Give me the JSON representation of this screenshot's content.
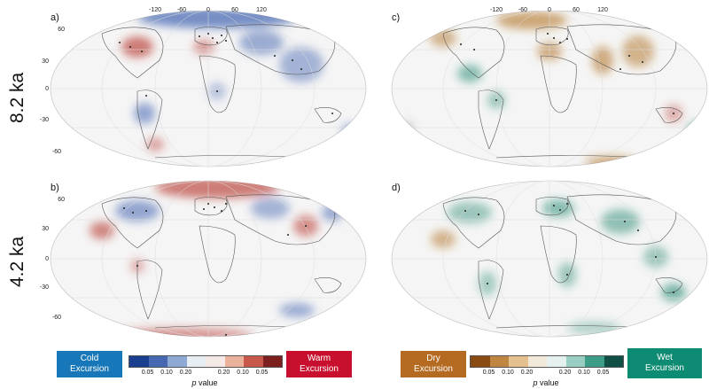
{
  "rows": [
    {
      "label": "8.2 ka"
    },
    {
      "label": "4.2 ka"
    }
  ],
  "panels": [
    {
      "letter": "a)",
      "variable": "temperature"
    },
    {
      "letter": "c)",
      "variable": "hydroclimate"
    },
    {
      "letter": "b)",
      "variable": "temperature"
    },
    {
      "letter": "d)",
      "variable": "hydroclimate"
    }
  ],
  "longitude_ticks": [
    "-120",
    "-60",
    "0",
    "60",
    "120"
  ],
  "latitude_ticks": [
    "60",
    "30",
    "0",
    "-30",
    "-60"
  ],
  "legend_temperature": {
    "left_box": "Cold\nExcursion",
    "right_box": "Warm\nExcursion",
    "left_color": "#1877b8",
    "right_color": "#c8102e",
    "ticks": [
      "0.05",
      "0.10",
      "0.20",
      "0.20",
      "0.10",
      "0.05"
    ],
    "colors": [
      "#1b3f8f",
      "#4668b0",
      "#8ea9d3",
      "#e6edf3",
      "#f4e9e6",
      "#eab29c",
      "#c8594a",
      "#7b1f1f"
    ],
    "axis_label_italic": "p",
    "axis_label_rest": " value"
  },
  "legend_hydro": {
    "left_box": "Dry\nExcursion",
    "right_box": "Wet\nExcursion",
    "left_color": "#b56a22",
    "right_color": "#0e8c73",
    "ticks": [
      "0.05",
      "0.10",
      "0.20",
      "0.20",
      "0.10",
      "0.05"
    ],
    "colors": [
      "#8a4a14",
      "#c18542",
      "#e4c18f",
      "#f2e9d9",
      "#e5f1ee",
      "#98cfc2",
      "#3d9d89",
      "#0f4f45"
    ],
    "axis_label_italic": "p",
    "axis_label_rest": " value"
  },
  "blob_colors": {
    "cold": "#3f62b0",
    "warm": "#b83a30",
    "dry": "#b07020",
    "wet": "#2a8c76"
  }
}
